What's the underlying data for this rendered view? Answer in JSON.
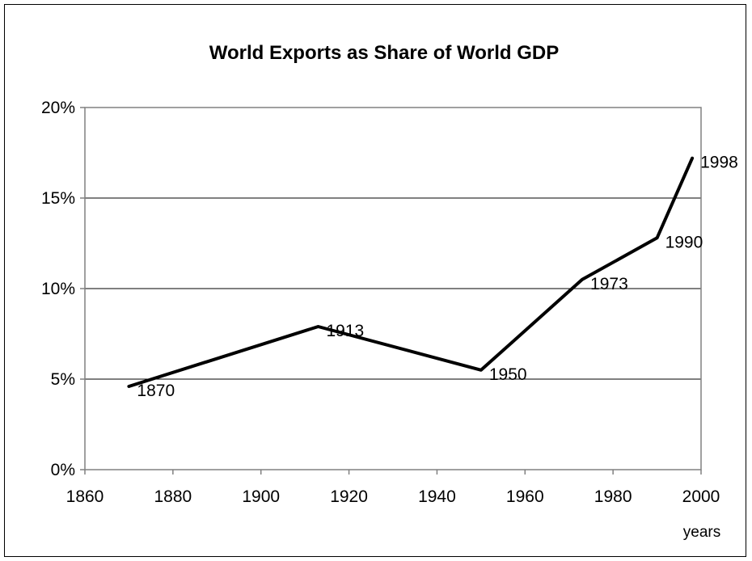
{
  "chart_data": {
    "type": "line",
    "title": "World Exports as Share of World GDP",
    "xlabel": "years",
    "ylabel": "",
    "xlim": [
      1860,
      2000
    ],
    "ylim": [
      0,
      20
    ],
    "x_ticks": [
      "1860",
      "1880",
      "1900",
      "1920",
      "1940",
      "1960",
      "1980",
      "2000"
    ],
    "y_ticks": [
      "0%",
      "5%",
      "10%",
      "15%",
      "20%"
    ],
    "grid": "horizontal",
    "legend": "none",
    "series": [
      {
        "color": "#000000",
        "points": [
          {
            "x": 1870,
            "y": 4.6,
            "label": "1870"
          },
          {
            "x": 1913,
            "y": 7.9,
            "label": "1913"
          },
          {
            "x": 1950,
            "y": 5.5,
            "label": "1950"
          },
          {
            "x": 1973,
            "y": 10.5,
            "label": "1973"
          },
          {
            "x": 1990,
            "y": 12.8,
            "label": "1990"
          },
          {
            "x": 1998,
            "y": 17.2,
            "label": "1998"
          }
        ]
      }
    ]
  }
}
